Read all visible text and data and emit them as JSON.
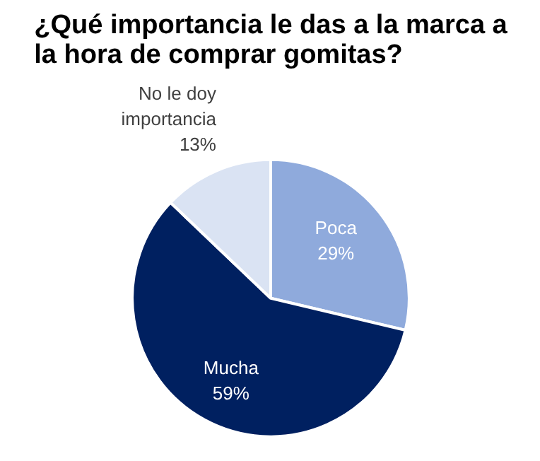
{
  "chart_data": {
    "type": "pie",
    "title": "¿Qué importancia le das a la marca a la hora de comprar gomitas?",
    "categories": [
      "Poca",
      "Mucha",
      "No le doy importancia"
    ],
    "values": [
      29,
      59,
      13
    ],
    "value_labels": [
      "29%",
      "59%",
      "13%"
    ],
    "colors": [
      "#8faadc",
      "#002060",
      "#dae3f3"
    ]
  }
}
